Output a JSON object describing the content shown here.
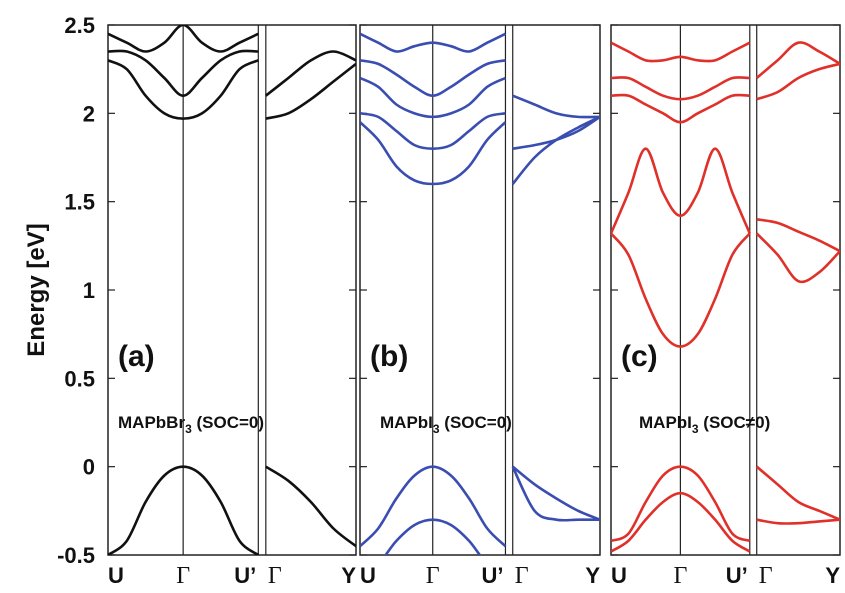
{
  "figure": {
    "ylabel": "Energy [eV]",
    "yticks": [
      "2.5",
      "2",
      "1.5",
      "1",
      "0.5",
      "0",
      "-0.5"
    ]
  },
  "chart_data": [
    {
      "type": "line",
      "panel_tag": "(a)",
      "caption": {
        "main": "MAPbBr",
        "sub": "3",
        "rest": " (SOC=0)"
      },
      "color": "#111111",
      "ylabel": "Energy [eV]",
      "ylim": [
        -0.5,
        2.5
      ],
      "xticks": [
        "U",
        "Γ",
        "U’",
        "Γ",
        "Y"
      ],
      "x_segments": [
        "U→Γ",
        "Γ→U’",
        "U’→Γ",
        "Γ→Y"
      ],
      "series": [
        {
          "segment": "U-Γ-U'",
          "x": [
            0,
            0.25,
            0.5,
            0.75,
            1,
            1.25,
            1.5,
            1.75,
            2
          ],
          "values": [
            -0.5,
            -0.42,
            -0.2,
            -0.05,
            0,
            -0.05,
            -0.2,
            -0.42,
            -0.5
          ]
        },
        {
          "segment": "U-Γ-U'",
          "x": [
            0,
            0.25,
            0.5,
            0.75,
            1,
            1.25,
            1.5,
            1.75,
            2
          ],
          "values": [
            2.3,
            2.25,
            2.1,
            2.0,
            1.97,
            2.0,
            2.1,
            2.25,
            2.3
          ]
        },
        {
          "segment": "U-Γ-U'",
          "x": [
            0,
            0.25,
            0.5,
            0.75,
            1,
            1.25,
            1.5,
            1.75,
            2
          ],
          "values": [
            2.35,
            2.35,
            2.3,
            2.2,
            2.1,
            2.2,
            2.3,
            2.35,
            2.35
          ]
        },
        {
          "segment": "U-Γ-U'",
          "x": [
            0,
            0.25,
            0.5,
            0.75,
            1,
            1.25,
            1.5,
            1.75,
            2
          ],
          "values": [
            2.45,
            2.4,
            2.35,
            2.4,
            2.5,
            2.4,
            2.35,
            2.4,
            2.45
          ]
        },
        {
          "segment": "Γ-Y",
          "x": [
            2.1,
            2.4,
            2.7,
            3.0,
            3.3
          ],
          "values": [
            0,
            -0.08,
            -0.2,
            -0.35,
            -0.45
          ]
        },
        {
          "segment": "Γ-Y",
          "x": [
            2.1,
            2.4,
            2.7,
            3.0,
            3.3
          ],
          "values": [
            1.97,
            2.0,
            2.08,
            2.18,
            2.28
          ]
        },
        {
          "segment": "Γ-Y",
          "x": [
            2.1,
            2.4,
            2.7,
            3.0,
            3.3
          ],
          "values": [
            2.1,
            2.2,
            2.3,
            2.35,
            2.3
          ]
        }
      ]
    },
    {
      "type": "line",
      "panel_tag": "(b)",
      "caption": {
        "main": "MAPbI",
        "sub": "3",
        "rest": " (SOC=0)"
      },
      "color": "#3a4db0",
      "ylim": [
        -0.5,
        2.5
      ],
      "xticks": [
        "U",
        "Γ",
        "U’",
        "Γ",
        "Y"
      ],
      "series": [
        {
          "segment": "U-Γ-U'",
          "x": [
            0,
            0.25,
            0.5,
            0.75,
            1,
            1.25,
            1.5,
            1.75,
            2
          ],
          "values": [
            -0.45,
            -0.35,
            -0.18,
            -0.05,
            0,
            -0.05,
            -0.18,
            -0.35,
            -0.45
          ]
        },
        {
          "segment": "U-Γ-U'",
          "x": [
            0,
            0.25,
            0.5,
            0.75,
            1,
            1.25,
            1.5,
            1.75,
            2
          ],
          "values": [
            -0.6,
            -0.55,
            -0.42,
            -0.33,
            -0.3,
            -0.33,
            -0.42,
            -0.55,
            -0.6
          ]
        },
        {
          "segment": "U-Γ-U'",
          "x": [
            0,
            0.25,
            0.5,
            0.75,
            1,
            1.25,
            1.5,
            1.75,
            2
          ],
          "values": [
            1.95,
            1.85,
            1.7,
            1.62,
            1.6,
            1.62,
            1.7,
            1.85,
            1.95
          ]
        },
        {
          "segment": "U-Γ-U'",
          "x": [
            0,
            0.25,
            0.5,
            0.75,
            1,
            1.25,
            1.5,
            1.75,
            2
          ],
          "values": [
            2.0,
            1.98,
            1.9,
            1.82,
            1.8,
            1.82,
            1.9,
            1.98,
            2.0
          ]
        },
        {
          "segment": "U-Γ-U'",
          "x": [
            0,
            0.25,
            0.5,
            0.75,
            1,
            1.25,
            1.5,
            1.75,
            2
          ],
          "values": [
            2.2,
            2.15,
            2.05,
            2.0,
            1.98,
            2.0,
            2.05,
            2.15,
            2.2
          ]
        },
        {
          "segment": "U-Γ-U'",
          "x": [
            0,
            0.25,
            0.5,
            0.75,
            1,
            1.25,
            1.5,
            1.75,
            2
          ],
          "values": [
            2.3,
            2.28,
            2.22,
            2.15,
            2.1,
            2.15,
            2.22,
            2.28,
            2.3
          ]
        },
        {
          "segment": "U-Γ-U'",
          "x": [
            0,
            0.25,
            0.5,
            0.75,
            1,
            1.25,
            1.5,
            1.75,
            2
          ],
          "values": [
            2.45,
            2.4,
            2.35,
            2.38,
            2.4,
            2.38,
            2.35,
            2.4,
            2.45
          ]
        },
        {
          "segment": "Γ-Y",
          "x": [
            2.1,
            2.4,
            2.7,
            3.0,
            3.3
          ],
          "values": [
            0,
            -0.1,
            -0.18,
            -0.25,
            -0.3
          ]
        },
        {
          "segment": "Γ-Y",
          "x": [
            2.1,
            2.4,
            2.7,
            3.0,
            3.3
          ],
          "values": [
            0,
            -0.25,
            -0.3,
            -0.3,
            -0.3
          ]
        },
        {
          "segment": "Γ-Y",
          "x": [
            2.1,
            2.4,
            2.7,
            3.0,
            3.3
          ],
          "values": [
            1.6,
            1.75,
            1.85,
            1.92,
            1.98
          ]
        },
        {
          "segment": "Γ-Y",
          "x": [
            2.1,
            2.4,
            2.7,
            3.0,
            3.3
          ],
          "values": [
            1.8,
            1.82,
            1.85,
            1.9,
            1.98
          ]
        },
        {
          "segment": "Γ-Y",
          "x": [
            2.1,
            2.4,
            2.7,
            3.0,
            3.3
          ],
          "values": [
            2.1,
            2.05,
            2.0,
            1.98,
            1.98
          ]
        }
      ]
    },
    {
      "type": "line",
      "panel_tag": "(c)",
      "caption": {
        "main": "MAPbI",
        "sub": "3",
        "rest": " (SOC≠0)"
      },
      "color": "#e0302a",
      "ylim": [
        -0.5,
        2.5
      ],
      "xticks": [
        "U",
        "Γ",
        "U’",
        "Γ",
        "Y"
      ],
      "series": [
        {
          "segment": "U-Γ-U'",
          "x": [
            0,
            0.25,
            0.5,
            0.75,
            1,
            1.25,
            1.5,
            1.75,
            2
          ],
          "values": [
            -0.42,
            -0.38,
            -0.2,
            -0.05,
            0,
            -0.05,
            -0.2,
            -0.38,
            -0.42
          ]
        },
        {
          "segment": "U-Γ-U'",
          "x": [
            0,
            0.25,
            0.5,
            0.75,
            1,
            1.25,
            1.5,
            1.75,
            2
          ],
          "values": [
            -0.48,
            -0.42,
            -0.3,
            -0.2,
            -0.15,
            -0.2,
            -0.3,
            -0.42,
            -0.48
          ]
        },
        {
          "segment": "U-Γ-U'",
          "x": [
            0,
            0.25,
            0.5,
            0.75,
            1,
            1.25,
            1.5,
            1.75,
            2
          ],
          "values": [
            1.32,
            1.2,
            0.95,
            0.75,
            0.68,
            0.75,
            0.95,
            1.2,
            1.32
          ]
        },
        {
          "segment": "U-Γ-U'",
          "x": [
            0,
            0.25,
            0.5,
            0.75,
            1,
            1.25,
            1.5,
            1.75,
            2
          ],
          "values": [
            1.32,
            1.55,
            1.8,
            1.55,
            1.42,
            1.55,
            1.8,
            1.55,
            1.32
          ]
        },
        {
          "segment": "U-Γ-U'",
          "x": [
            0,
            0.25,
            0.5,
            0.75,
            1,
            1.25,
            1.5,
            1.75,
            2
          ],
          "values": [
            2.1,
            2.1,
            2.05,
            2.0,
            1.95,
            2.0,
            2.05,
            2.1,
            2.1
          ]
        },
        {
          "segment": "U-Γ-U'",
          "x": [
            0,
            0.25,
            0.5,
            0.75,
            1,
            1.25,
            1.5,
            1.75,
            2
          ],
          "values": [
            2.2,
            2.2,
            2.15,
            2.1,
            2.08,
            2.1,
            2.15,
            2.2,
            2.2
          ]
        },
        {
          "segment": "U-Γ-U'",
          "x": [
            0,
            0.25,
            0.5,
            0.75,
            1,
            1.25,
            1.5,
            1.75,
            2
          ],
          "values": [
            2.4,
            2.35,
            2.3,
            2.3,
            2.32,
            2.3,
            2.3,
            2.35,
            2.4
          ]
        },
        {
          "segment": "Γ-Y",
          "x": [
            2.1,
            2.4,
            2.7,
            3.0,
            3.3
          ],
          "values": [
            0,
            -0.1,
            -0.2,
            -0.25,
            -0.3
          ]
        },
        {
          "segment": "Γ-Y",
          "x": [
            2.1,
            2.4,
            2.7,
            3.0,
            3.3
          ],
          "values": [
            -0.3,
            -0.32,
            -0.32,
            -0.31,
            -0.3
          ]
        },
        {
          "segment": "Γ-Y",
          "x": [
            2.1,
            2.4,
            2.7,
            3.0,
            3.3
          ],
          "values": [
            1.4,
            1.38,
            1.33,
            1.28,
            1.22
          ]
        },
        {
          "segment": "Γ-Y",
          "x": [
            2.1,
            2.4,
            2.7,
            3.0,
            3.3
          ],
          "values": [
            1.32,
            1.2,
            1.05,
            1.1,
            1.22
          ]
        },
        {
          "segment": "Γ-Y",
          "x": [
            2.1,
            2.4,
            2.7,
            3.0,
            3.3
          ],
          "values": [
            2.08,
            2.12,
            2.2,
            2.25,
            2.28
          ]
        },
        {
          "segment": "Γ-Y",
          "x": [
            2.1,
            2.4,
            2.7,
            3.0,
            3.3
          ],
          "values": [
            2.2,
            2.3,
            2.4,
            2.35,
            2.28
          ]
        }
      ]
    }
  ]
}
